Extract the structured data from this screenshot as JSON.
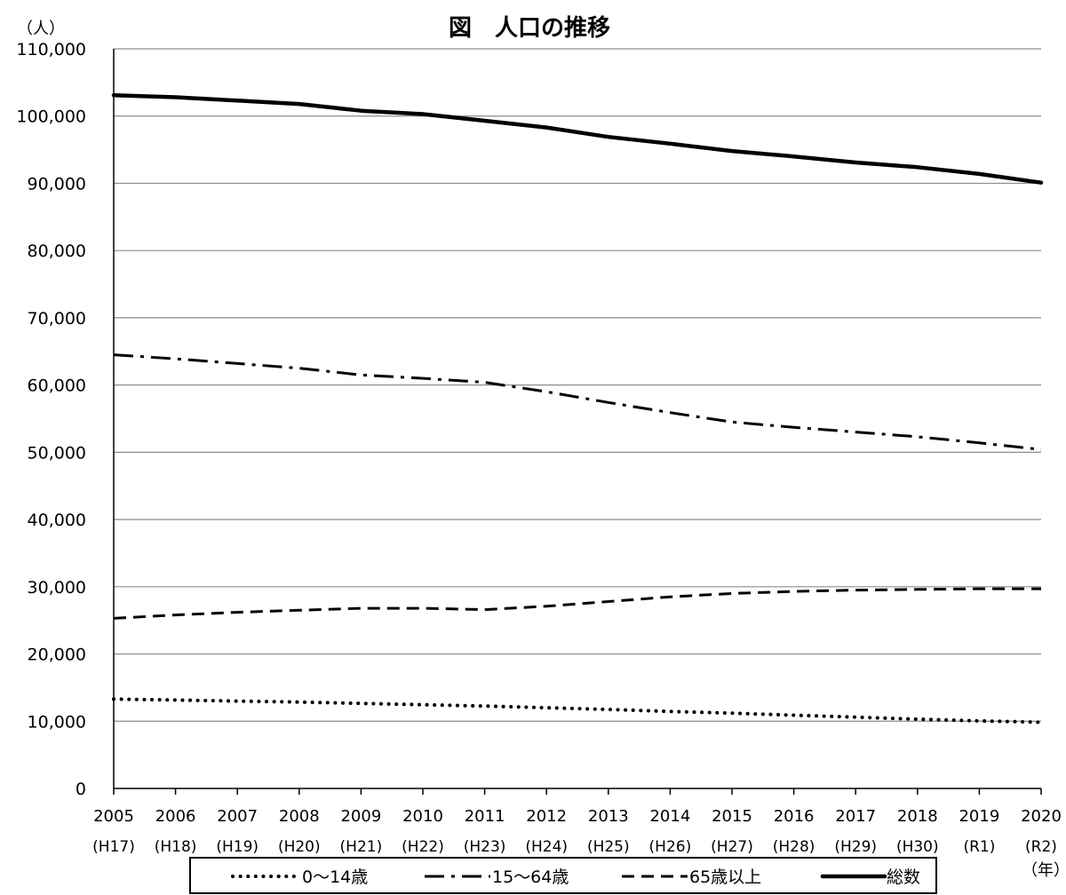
{
  "chart_data": {
    "type": "line",
    "title": "図　人口の推移",
    "ylabel": "（人）",
    "xlabel": "（年）",
    "ylim": [
      0,
      110000
    ],
    "yticks": [
      0,
      10000,
      20000,
      30000,
      40000,
      50000,
      60000,
      70000,
      80000,
      90000,
      100000,
      110000
    ],
    "ytick_labels": [
      "0",
      "10,000",
      "20,000",
      "30,000",
      "40,000",
      "50,000",
      "60,000",
      "70,000",
      "80,000",
      "90,000",
      "100,000",
      "110,000"
    ],
    "x": [
      "2005",
      "2006",
      "2007",
      "2008",
      "2009",
      "2010",
      "2011",
      "2012",
      "2013",
      "2014",
      "2015",
      "2016",
      "2017",
      "2018",
      "2019",
      "2020"
    ],
    "x_sublabels": [
      "(H17)",
      "(H18)",
      "(H19)",
      "(H20)",
      "(H21)",
      "(H22)",
      "(H23)",
      "(H24)",
      "(H25)",
      "(H26)",
      "(H27)",
      "(H28)",
      "(H29)",
      "(H30)",
      "(R1)",
      "(R2)"
    ],
    "grid": true,
    "legend_position": "bottom",
    "series": [
      {
        "name": "0～14歳",
        "style": "dotted",
        "values": [
          13300,
          13150,
          13000,
          12850,
          12650,
          12450,
          12250,
          12000,
          11750,
          11450,
          11200,
          10900,
          10600,
          10300,
          10050,
          9850
        ]
      },
      {
        "name": "15～64歳",
        "style": "dashdot",
        "values": [
          64500,
          63900,
          63200,
          62500,
          61500,
          61000,
          60400,
          59000,
          57400,
          55900,
          54500,
          53700,
          53000,
          52300,
          51400,
          50400
        ]
      },
      {
        "name": "65歳以上",
        "style": "dashed",
        "values": [
          25300,
          25800,
          26200,
          26500,
          26800,
          26800,
          26600,
          27100,
          27800,
          28500,
          29000,
          29300,
          29500,
          29600,
          29700,
          29700
        ]
      },
      {
        "name": "総数",
        "style": "solid",
        "values": [
          103100,
          102800,
          102300,
          101800,
          100800,
          100300,
          99300,
          98300,
          96900,
          95900,
          94800,
          94000,
          93100,
          92400,
          91400,
          90100
        ]
      }
    ]
  }
}
